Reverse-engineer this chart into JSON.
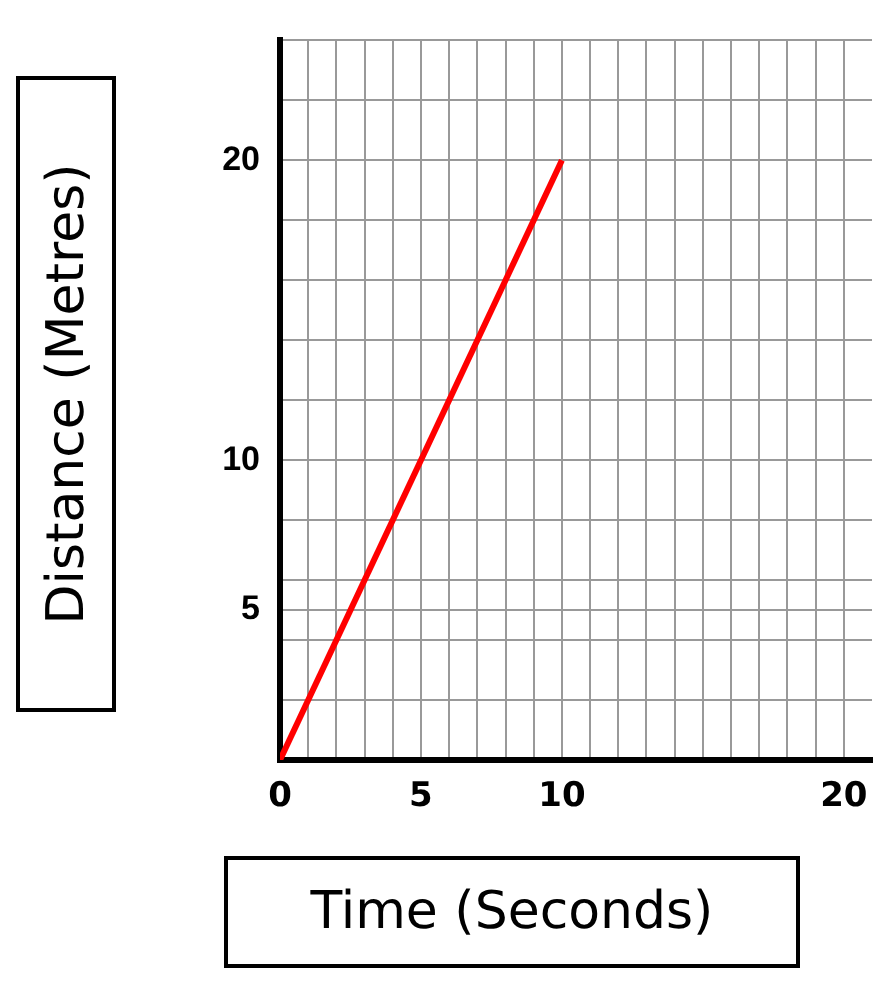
{
  "chart_data": {
    "type": "line",
    "xlabel": "Time (Seconds)",
    "ylabel": "Distance (Metres)",
    "x": [
      0,
      10
    ],
    "series": [
      {
        "color": "#ff0000",
        "values": [
          0,
          20
        ]
      }
    ],
    "xlim": [
      0,
      21
    ],
    "ylim": [
      0,
      24
    ],
    "xticks": [
      0,
      {
        "value": 1,
        "label": null
      },
      {
        "value": 2,
        "label": null
      },
      {
        "value": 3,
        "label": null
      },
      {
        "value": 4,
        "label": null
      },
      5,
      {
        "value": 6,
        "label": null
      },
      {
        "value": 7,
        "label": null
      },
      {
        "value": 8,
        "label": null
      },
      {
        "value": 9,
        "label": null
      },
      10,
      {
        "value": 11,
        "label": null
      },
      {
        "value": 12,
        "label": null
      },
      {
        "value": 13,
        "label": null
      },
      {
        "value": 14,
        "label": null
      },
      {
        "value": 15,
        "label": null
      },
      {
        "value": 16,
        "label": null
      },
      {
        "value": 17,
        "label": null
      },
      {
        "value": 18,
        "label": null
      },
      {
        "value": 19,
        "label": null
      },
      20
    ],
    "yticks": [
      {
        "value": 0,
        "label": null
      },
      {
        "value": 2,
        "label": null
      },
      {
        "value": 4,
        "label": null
      },
      5,
      {
        "value": 6,
        "label": null
      },
      {
        "value": 8,
        "label": null
      },
      10,
      {
        "value": 12,
        "label": null
      },
      {
        "value": 14,
        "label": null
      },
      {
        "value": 16,
        "label": null
      },
      {
        "value": 18,
        "label": null
      },
      20,
      {
        "value": 22,
        "label": null
      },
      {
        "value": 24,
        "label": null
      }
    ],
    "grid": true,
    "marker": "none"
  }
}
